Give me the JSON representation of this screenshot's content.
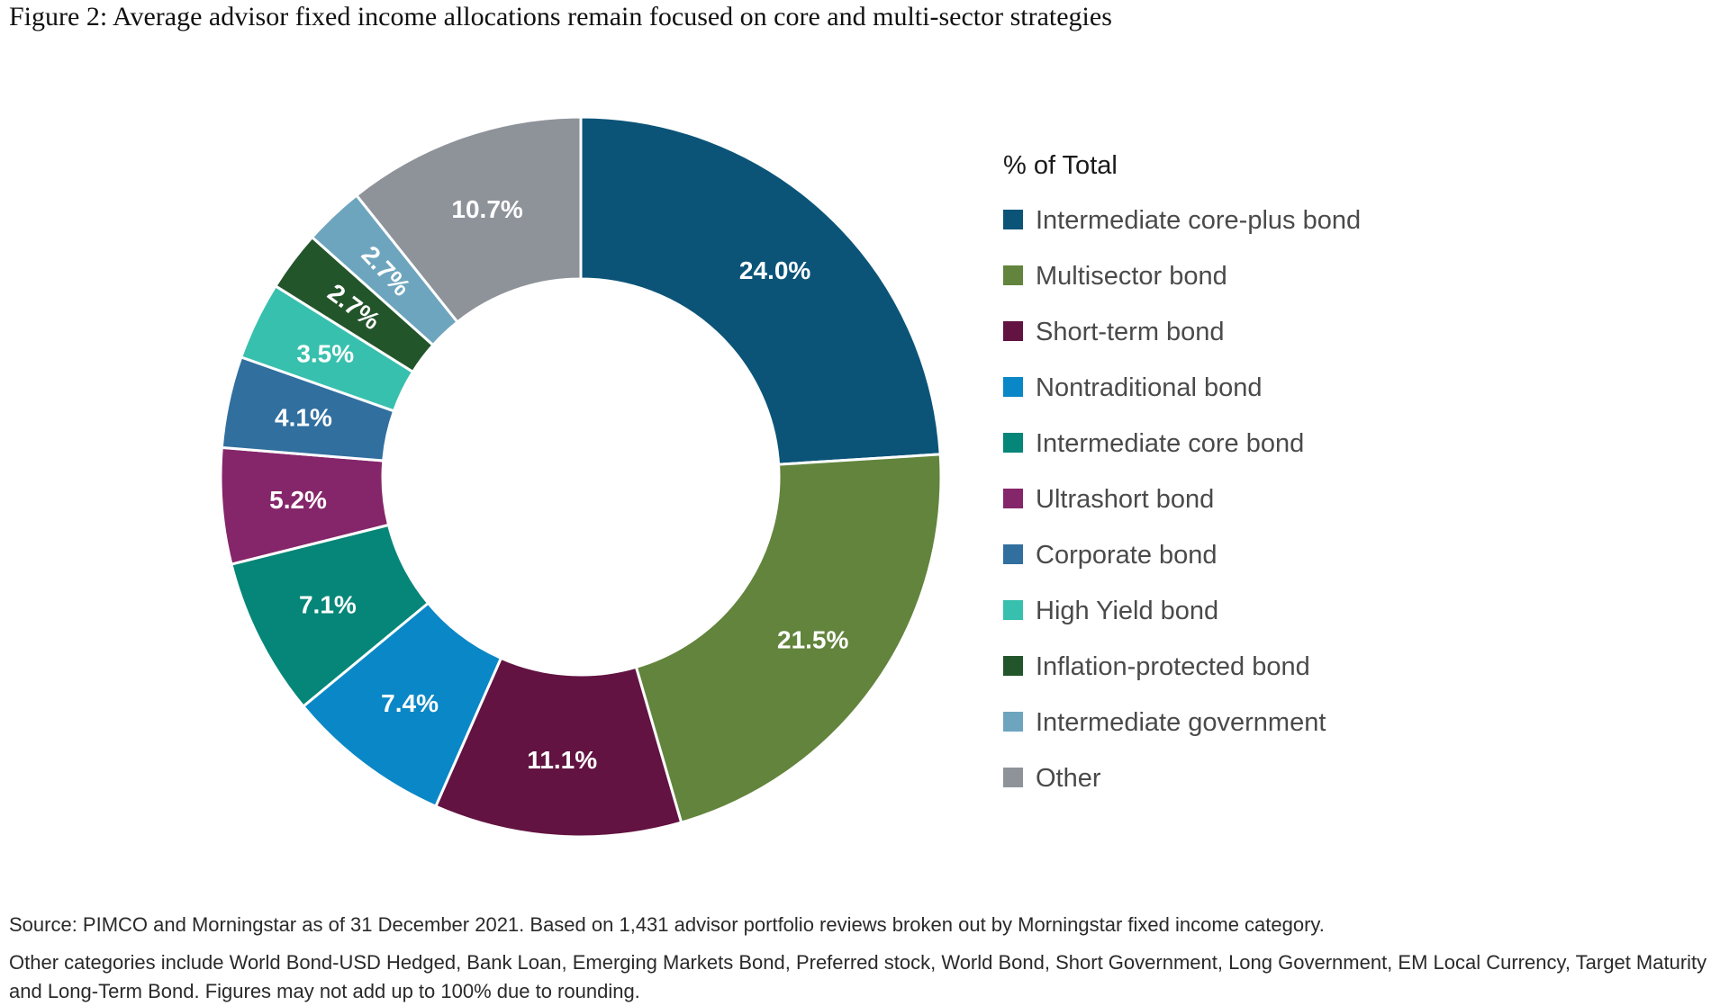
{
  "title": "Figure 2: Average advisor fixed income allocations remain focused on core and multi-sector strategies",
  "chart_data": {
    "type": "pie",
    "donut": true,
    "legend_title": "% of Total",
    "legend_placement": "right",
    "series": [
      {
        "name": "Intermediate core-plus bond",
        "value": 24.0,
        "label": "24.0%",
        "color": "#0b5478"
      },
      {
        "name": "Multisector bond",
        "value": 21.5,
        "label": "21.5%",
        "color": "#62843c"
      },
      {
        "name": "Short-term bond",
        "value": 11.1,
        "label": "11.1%",
        "color": "#621341"
      },
      {
        "name": "Nontraditional bond",
        "value": 7.4,
        "label": "7.4%",
        "color": "#0a87c6"
      },
      {
        "name": "Intermediate core bond",
        "value": 7.1,
        "label": "7.1%",
        "color": "#058678"
      },
      {
        "name": "Ultrashort bond",
        "value": 5.2,
        "label": "5.2%",
        "color": "#85266a"
      },
      {
        "name": "Corporate bond",
        "value": 4.1,
        "label": "4.1%",
        "color": "#316f9f"
      },
      {
        "name": "High Yield bond",
        "value": 3.5,
        "label": "3.5%",
        "color": "#37c0ad"
      },
      {
        "name": "Inflation-protected bond",
        "value": 2.7,
        "label": "2.7%",
        "color": "#23552b"
      },
      {
        "name": "Intermediate government",
        "value": 2.7,
        "label": "2.7%",
        "color": "#6ea5be"
      },
      {
        "name": "Other",
        "value": 10.7,
        "label": "10.7%",
        "color": "#8e939a"
      }
    ]
  },
  "footnotes": {
    "source": "Source: PIMCO and Morningstar as of 31 December 2021. Based on 1,431 advisor portfolio reviews broken out by Morningstar fixed income category.",
    "other": "Other categories include World Bond-USD Hedged, Bank Loan, Emerging Markets Bond, Preferred stock, World Bond, Short Government, Long Government, EM Local Currency, Target Maturity and Long-Term Bond. Figures may not add up to 100% due to rounding."
  }
}
